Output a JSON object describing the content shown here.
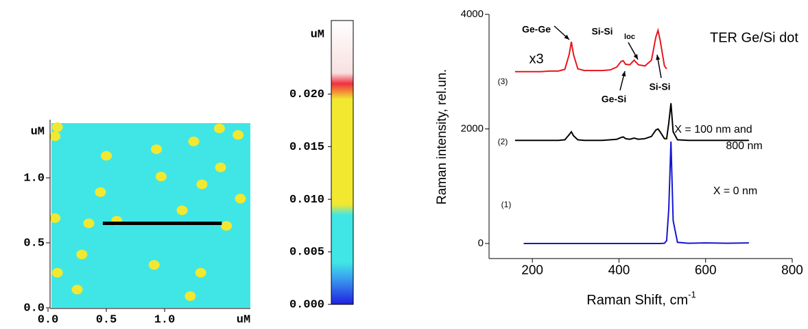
{
  "chart_data": [
    {
      "type": "image",
      "xlabel": "uM",
      "ylabel": "uM",
      "xlim": [
        0,
        1.7
      ],
      "ylim": [
        0,
        1.42
      ],
      "xticks": [
        {
          "value": 0,
          "label": "0.0"
        },
        {
          "value": 0.5,
          "label": "0.5"
        },
        {
          "value": 1.0,
          "label": "1.0"
        }
      ],
      "yticks": [
        {
          "value": 0,
          "label": "0.0"
        },
        {
          "value": 0.5,
          "label": "0.5"
        },
        {
          "value": 1.0,
          "label": "1.0"
        }
      ],
      "background_color": "#40e6e6",
      "dots": {
        "color": "#f2e830",
        "x": [
          0.08,
          0.06,
          0.5,
          0.93,
          1.25,
          1.47,
          1.63,
          1.48,
          0.97,
          0.45,
          1.32,
          0.06,
          0.35,
          1.15,
          0.59,
          1.53,
          0.29,
          0.91,
          0.08,
          1.31,
          0.25,
          1.22,
          1.65
        ],
        "y": [
          1.39,
          1.32,
          1.17,
          1.22,
          1.28,
          1.38,
          1.33,
          1.08,
          1.01,
          0.89,
          0.95,
          0.69,
          0.65,
          0.75,
          0.67,
          0.63,
          0.41,
          0.33,
          0.27,
          0.27,
          0.14,
          0.09,
          0.84
        ]
      },
      "profile_line": {
        "color": "#000000",
        "x": [
          0.47,
          1.49
        ],
        "y": [
          0.65,
          0.65
        ]
      }
    },
    {
      "type": "colorbar",
      "label": "uM",
      "lim": [
        0,
        0.027
      ],
      "ticks": [
        {
          "value": 0,
          "label": "0.000"
        },
        {
          "value": 0.005,
          "label": "0.005"
        },
        {
          "value": 0.01,
          "label": "0.010"
        },
        {
          "value": 0.015,
          "label": "0.015"
        },
        {
          "value": 0.02,
          "label": "0.020"
        }
      ],
      "colorscale": [
        {
          "value": 0,
          "color": "#2020e0"
        },
        {
          "value": 0.0025,
          "color": "#3aa0f0"
        },
        {
          "value": 0.004,
          "color": "#40e6e6"
        },
        {
          "value": 0.0085,
          "color": "#40e6e6"
        },
        {
          "value": 0.0095,
          "color": "#f2e830"
        },
        {
          "value": 0.0195,
          "color": "#f2e830"
        },
        {
          "value": 0.021,
          "color": "#f03040"
        },
        {
          "value": 0.022,
          "color": "#f8e0e0"
        },
        {
          "value": 0.027,
          "color": "#ffffff"
        }
      ]
    },
    {
      "type": "line",
      "xlabel": "Raman Shift, cm",
      "xlabel_sup": "-1",
      "ylabel": "Raman intensity, rel.un.",
      "xlim": [
        100,
        800
      ],
      "ylim": [
        -263,
        4000
      ],
      "xticks": [
        200,
        400,
        600,
        800
      ],
      "yticks": [
        0,
        2000,
        4000
      ],
      "x": [
        160,
        180,
        200,
        220,
        240,
        260,
        275,
        285,
        290,
        295,
        305,
        320,
        340,
        360,
        380,
        395,
        405,
        410,
        415,
        425,
        435,
        445,
        460,
        475,
        485,
        490,
        495,
        505,
        510,
        515,
        520,
        525,
        535,
        560,
        600,
        650,
        700
      ],
      "series": [
        {
          "name": "(3)",
          "color": "#e8141c",
          "values": [
            3000,
            3000,
            3000,
            3000,
            3010,
            3010,
            3040,
            3300,
            3520,
            3300,
            3050,
            3020,
            3020,
            3020,
            3030,
            3080,
            3180,
            3190,
            3130,
            3120,
            3200,
            3120,
            3100,
            3200,
            3600,
            3720,
            3550,
            3100,
            3050,
            null,
            null,
            null,
            null,
            null,
            null,
            null,
            null
          ]
        },
        {
          "name": "(2)",
          "color": "#000000",
          "values": [
            1800,
            1800,
            1800,
            1800,
            1800,
            1800,
            1810,
            1900,
            1950,
            1880,
            1810,
            1800,
            1800,
            1800,
            1810,
            1820,
            1850,
            1860,
            1830,
            1820,
            1840,
            1820,
            1830,
            1870,
            1980,
            2000,
            1950,
            1830,
            1830,
            2100,
            2450,
            1950,
            1810,
            1800,
            1800,
            1800,
            1800
          ]
        },
        {
          "name": "(1)",
          "color": "#1414d2",
          "values": [
            null,
            0,
            0,
            0,
            0,
            0,
            0,
            0,
            0,
            0,
            0,
            0,
            0,
            0,
            0,
            0,
            0,
            0,
            0,
            0,
            0,
            0,
            0,
            0,
            0,
            0,
            0,
            5,
            50,
            600,
            1780,
            400,
            20,
            5,
            10,
            5,
            10
          ]
        }
      ],
      "annotations": [
        "Ge-Ge",
        "Si-Si",
        "loc",
        "TER Ge/Si dot",
        "x3",
        "Ge-Si",
        "Si-Si",
        "X = 100 nm and",
        "800 nm",
        "X = 0 nm"
      ]
    }
  ]
}
